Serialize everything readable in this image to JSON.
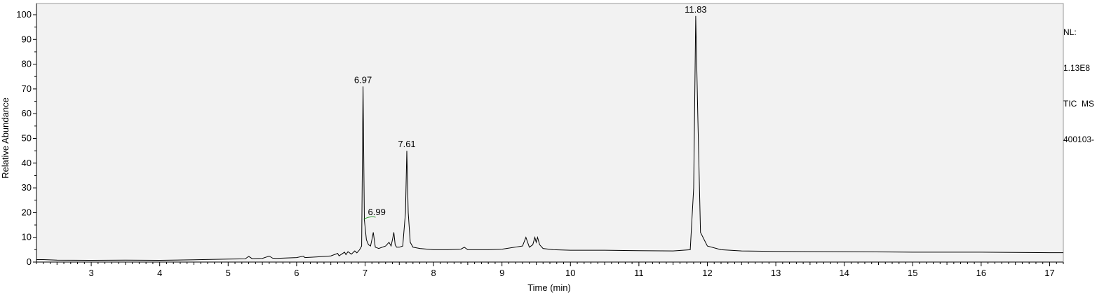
{
  "chart_data": {
    "type": "line",
    "title": "",
    "xlabel": "Time (min)",
    "ylabel": "Relative Abundance",
    "xlim": [
      2.2,
      17.2
    ],
    "ylim": [
      0,
      100
    ],
    "x_ticks": [
      3,
      4,
      5,
      6,
      7,
      8,
      9,
      10,
      11,
      12,
      13,
      14,
      15,
      16,
      17
    ],
    "y_ticks": [
      0,
      10,
      20,
      30,
      40,
      50,
      60,
      70,
      80,
      90,
      100
    ],
    "grid": false,
    "legend": "none",
    "line_color": "#000000",
    "background_color": "#f2f2f2",
    "series": [
      {
        "x": [
          2.2,
          2.3,
          2.5,
          3.0,
          3.5,
          4.0,
          4.5,
          5.0,
          5.25,
          5.3,
          5.35,
          5.5,
          5.6,
          5.65,
          5.7,
          6.0,
          6.1,
          6.12,
          6.3,
          6.5,
          6.6,
          6.62,
          6.7,
          6.72,
          6.75,
          6.8,
          6.85,
          6.88,
          6.92,
          6.95,
          6.97,
          6.99,
          7.02,
          7.05,
          7.08,
          7.1,
          7.12,
          7.15,
          7.2,
          7.3,
          7.35,
          7.38,
          7.4,
          7.42,
          7.44,
          7.46,
          7.5,
          7.55,
          7.59,
          7.61,
          7.63,
          7.66,
          7.7,
          7.8,
          8.0,
          8.2,
          8.4,
          8.45,
          8.5,
          8.8,
          9.0,
          9.3,
          9.35,
          9.4,
          9.45,
          9.48,
          9.5,
          9.52,
          9.55,
          9.6,
          9.75,
          10.0,
          10.5,
          11.0,
          11.5,
          11.75,
          11.8,
          11.83,
          11.86,
          11.9,
          12.0,
          12.2,
          12.5,
          13.0,
          14.0,
          15.0,
          16.0,
          17.0,
          17.2
        ],
        "y": [
          1.0,
          1.0,
          0.8,
          0.7,
          0.8,
          0.7,
          0.9,
          1.2,
          1.3,
          2.3,
          1.4,
          1.5,
          2.4,
          1.6,
          1.5,
          1.8,
          2.4,
          1.8,
          2.1,
          2.5,
          3.5,
          2.5,
          4.0,
          3.0,
          4.2,
          3.2,
          4.5,
          3.7,
          5.0,
          6.5,
          71.0,
          17.0,
          9.0,
          7.0,
          6.5,
          9.0,
          12.0,
          6.0,
          5.5,
          6.5,
          8.0,
          6.5,
          9.0,
          12.0,
          7.0,
          6.0,
          6.0,
          6.5,
          20.0,
          45.0,
          20.0,
          8.0,
          6.0,
          5.5,
          5.0,
          5.0,
          5.2,
          6.0,
          5.0,
          5.0,
          5.2,
          6.5,
          10.0,
          6.0,
          7.0,
          10.0,
          8.0,
          10.0,
          7.0,
          5.5,
          5.0,
          4.8,
          4.8,
          4.6,
          4.5,
          5.0,
          30.0,
          99.5,
          60.0,
          12.0,
          6.5,
          5.0,
          4.5,
          4.3,
          4.2,
          4.0,
          4.0,
          3.8,
          3.8
        ]
      }
    ],
    "annotations": [
      {
        "x": 6.97,
        "y": 71.0,
        "text": "6.97"
      },
      {
        "x": 6.99,
        "y": 17.0,
        "text": "6.99"
      },
      {
        "x": 7.61,
        "y": 45.0,
        "text": "7.61"
      },
      {
        "x": 11.83,
        "y": 99.5,
        "text": "11.83"
      }
    ]
  },
  "info": {
    "nl_label": "NL:",
    "nl_value": "1.13E8",
    "trace": "TIC  MS",
    "file": "400103-"
  }
}
